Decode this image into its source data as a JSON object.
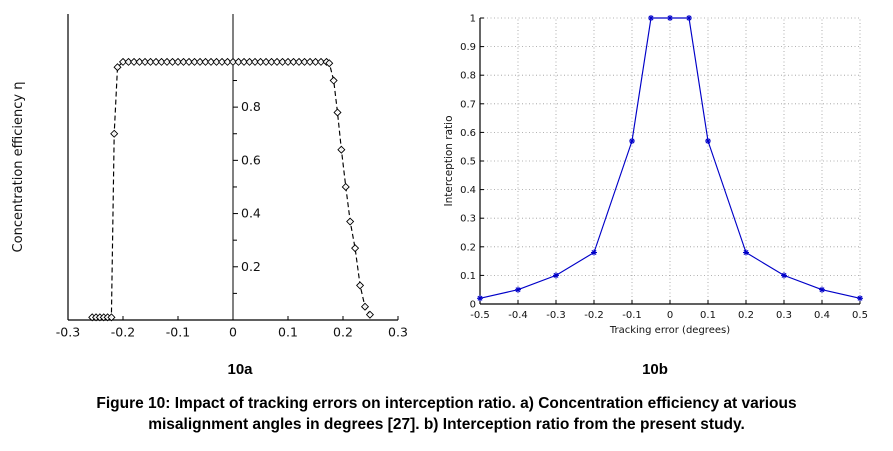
{
  "figure": {
    "sublabel_a": "10a",
    "sublabel_b": "10b",
    "caption_line1": "Figure 10: Impact of tracking errors on interception ratio. a) Concentration efficiency at various",
    "caption_line2": "misalignment angles in degrees [27]. b) Interception ratio from the present study."
  },
  "chart_data": [
    {
      "type": "line",
      "title": "",
      "xlabel": "",
      "ylabel": "Concentration efficiency η",
      "xlim": [
        -0.3,
        0.3
      ],
      "ylim": [
        0,
        1.15
      ],
      "x_ticks": [
        -0.3,
        -0.2,
        -0.1,
        0,
        0.1,
        0.2,
        0.3
      ],
      "y_ticks": [
        0.2,
        0.4,
        0.6,
        0.8
      ],
      "y_minor_ticks": [
        0.1,
        0.3,
        0.5,
        0.7,
        0.9
      ],
      "y_axis_at_x": 0,
      "grid": false,
      "line_color": "#000000",
      "line_style": "dashed",
      "marker": "diamond-open",
      "series": [
        {
          "name": "Concentration efficiency vs misalignment angle (degrees)",
          "points": [
            [
              -0.256,
              0.01
            ],
            [
              -0.249,
              0.01
            ],
            [
              -0.242,
              0.01
            ],
            [
              -0.235,
              0.01
            ],
            [
              -0.228,
              0.01
            ],
            [
              -0.221,
              0.01
            ],
            [
              -0.216,
              0.7
            ],
            [
              -0.21,
              0.95
            ],
            [
              -0.2,
              0.97
            ],
            [
              -0.19,
              0.97
            ],
            [
              -0.18,
              0.97
            ],
            [
              -0.17,
              0.97
            ],
            [
              -0.16,
              0.97
            ],
            [
              -0.15,
              0.97
            ],
            [
              -0.14,
              0.97
            ],
            [
              -0.13,
              0.97
            ],
            [
              -0.12,
              0.97
            ],
            [
              -0.11,
              0.97
            ],
            [
              -0.1,
              0.97
            ],
            [
              -0.09,
              0.97
            ],
            [
              -0.08,
              0.97
            ],
            [
              -0.07,
              0.97
            ],
            [
              -0.06,
              0.97
            ],
            [
              -0.05,
              0.97
            ],
            [
              -0.04,
              0.97
            ],
            [
              -0.03,
              0.97
            ],
            [
              -0.02,
              0.97
            ],
            [
              -0.01,
              0.97
            ],
            [
              0,
              0.97
            ],
            [
              0.01,
              0.97
            ],
            [
              0.02,
              0.97
            ],
            [
              0.03,
              0.97
            ],
            [
              0.04,
              0.97
            ],
            [
              0.05,
              0.97
            ],
            [
              0.06,
              0.97
            ],
            [
              0.07,
              0.97
            ],
            [
              0.08,
              0.97
            ],
            [
              0.09,
              0.97
            ],
            [
              0.1,
              0.97
            ],
            [
              0.11,
              0.97
            ],
            [
              0.12,
              0.97
            ],
            [
              0.13,
              0.97
            ],
            [
              0.14,
              0.97
            ],
            [
              0.15,
              0.97
            ],
            [
              0.16,
              0.97
            ],
            [
              0.17,
              0.97
            ],
            [
              0.175,
              0.965
            ],
            [
              0.183,
              0.9
            ],
            [
              0.19,
              0.78
            ],
            [
              0.197,
              0.64
            ],
            [
              0.205,
              0.5
            ],
            [
              0.213,
              0.37
            ],
            [
              0.222,
              0.27
            ],
            [
              0.231,
              0.13
            ],
            [
              0.24,
              0.05
            ],
            [
              0.249,
              0.02
            ]
          ]
        }
      ]
    },
    {
      "type": "line",
      "title": "",
      "xlabel": "Tracking error (degrees)",
      "ylabel": "Interception ratio",
      "xlim": [
        -0.5,
        0.5
      ],
      "ylim": [
        0,
        1
      ],
      "x_ticks": [
        -0.5,
        -0.4,
        -0.3,
        -0.2,
        -0.1,
        0,
        0.1,
        0.2,
        0.3,
        0.4,
        0.5
      ],
      "y_ticks": [
        0,
        0.1,
        0.2,
        0.3,
        0.4,
        0.5,
        0.6,
        0.7,
        0.8,
        0.9,
        1
      ],
      "grid": true,
      "line_color": "#0000c8",
      "line_style": "solid",
      "marker": "asterisk",
      "series": [
        {
          "name": "Interception ratio vs tracking error",
          "points": [
            [
              -0.5,
              0.02
            ],
            [
              -0.4,
              0.05
            ],
            [
              -0.3,
              0.1
            ],
            [
              -0.2,
              0.18
            ],
            [
              -0.1,
              0.57
            ],
            [
              -0.05,
              1
            ],
            [
              0,
              1
            ],
            [
              0.05,
              1
            ],
            [
              0.1,
              0.57
            ],
            [
              0.2,
              0.18
            ],
            [
              0.3,
              0.1
            ],
            [
              0.4,
              0.05
            ],
            [
              0.5,
              0.02
            ]
          ]
        }
      ]
    }
  ]
}
